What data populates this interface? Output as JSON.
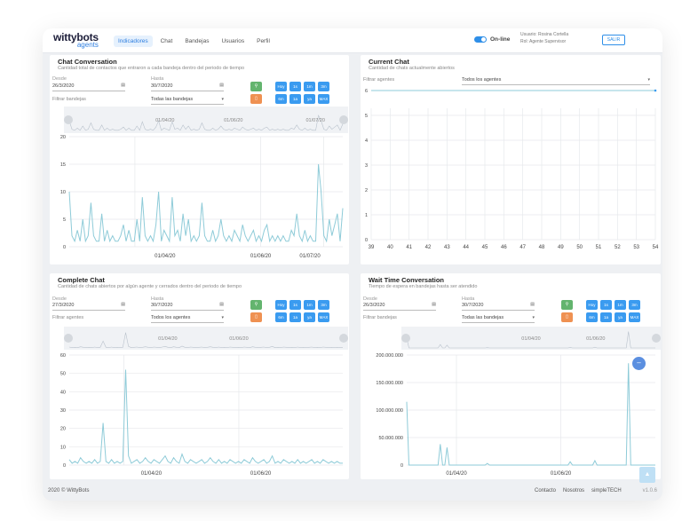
{
  "brand": {
    "logo_top": "wittybots",
    "logo_bottom": "agents"
  },
  "nav": {
    "items": [
      "Indicadores",
      "Chat",
      "Bandejas",
      "Usuarios",
      "Perfil"
    ],
    "active": "Indicadores"
  },
  "status": {
    "online_label": "On-line"
  },
  "user": {
    "user_key": "Usuario:",
    "user_name": "Rosina Cortella",
    "role_key": "Rol:",
    "role_name": "Agente Supervisor",
    "logout_label": "SALIR"
  },
  "colors": {
    "accent": "#2f8fe8",
    "line": "#8ecbd8",
    "green": "#63b46e",
    "orange": "#ef9152"
  },
  "range_buttons": {
    "row1": [
      "Hoy",
      "1s",
      "1m",
      "3m"
    ],
    "row2": [
      "6m",
      "1a",
      "ya",
      "MAX"
    ]
  },
  "icons": {
    "search": "search-icon",
    "chart": "chart-icon",
    "calendar": "calendar-icon"
  },
  "panels": {
    "chat_conversation": {
      "title": "Chat Conversation",
      "subtitle": "Cantidad total de contactos que entraron a cada bandeja dentro del periodo de tiempo",
      "from_label": "Desde",
      "from_value": "26/3/2020",
      "to_label": "Hasta",
      "to_value": "30/7/2020",
      "filter_label": "Filtrar bandejas",
      "filter_value": "Todas las bandejas",
      "nav_dates": [
        "01/04/20",
        "01/06/20",
        "01/07/20"
      ],
      "x_dates": [
        "01/04/20",
        "01/06/20",
        "01/07/20"
      ]
    },
    "current_chat": {
      "title": "Current Chat",
      "subtitle": "Cantidad de chats actualmente abiertos",
      "filter_label": "Filtrar agentes",
      "filter_value": "Todos los agentes"
    },
    "complete_chat": {
      "title": "Complete Chat",
      "subtitle": "Cantidad de chats abiertos por algún agente y cerrados dentro del periodo de tiempo",
      "from_label": "Desde",
      "from_value": "27/3/2020",
      "to_label": "Hasta",
      "to_value": "30/7/2020",
      "filter_label": "Filtrar agentes",
      "filter_value": "Todos los agentes",
      "nav_dates": [
        "01/04/20",
        "01/06/20"
      ],
      "x_dates": [
        "01/04/20",
        "01/06/20"
      ]
    },
    "wait_time": {
      "title": "Wait Time Conversation",
      "subtitle": "Tiempo de espera en bandejas hasta ser atendido",
      "from_label": "Desde",
      "from_value": "26/3/2020",
      "to_label": "Hasta",
      "to_value": "30/7/2020",
      "filter_label": "Filtrar bandejas",
      "filter_value": "Todas las bandejas",
      "nav_dates": [
        "01/04/20",
        "01/06/20"
      ],
      "x_dates": [
        "01/04/20",
        "01/06/20"
      ]
    }
  },
  "chart_data": [
    {
      "type": "line",
      "title": "Chat Conversation",
      "ylim": [
        0,
        20
      ],
      "yticks": [
        0,
        5,
        10,
        15,
        20
      ],
      "x_tick_labels": [
        "01/04/20",
        "01/06/20",
        "01/07/20"
      ],
      "series": [
        {
          "values": [
            10,
            2,
            1,
            3,
            1,
            5,
            1,
            2,
            8,
            2,
            1,
            1,
            6,
            1,
            3,
            1,
            2,
            1,
            1,
            2,
            4,
            1,
            3,
            1,
            1,
            5,
            1,
            9,
            2,
            1,
            2,
            1,
            4,
            10,
            1,
            3,
            2,
            1,
            9,
            2,
            3,
            1,
            6,
            2,
            5,
            1,
            2,
            1,
            2,
            8,
            2,
            1,
            1,
            3,
            1,
            2,
            5,
            2,
            1,
            2,
            1,
            3,
            2,
            1,
            4,
            2,
            1,
            2,
            3,
            1,
            2,
            1,
            3,
            4,
            1,
            2,
            1,
            2,
            1,
            2,
            1,
            1,
            3,
            2,
            6,
            2,
            1,
            3,
            1,
            2,
            1,
            1,
            15,
            10,
            2,
            1,
            5,
            2,
            4,
            6,
            1,
            7
          ]
        }
      ]
    },
    {
      "type": "line",
      "title": "Current Chat",
      "ylim": [
        0,
        6
      ],
      "yticks": [
        0,
        1,
        2,
        3,
        4,
        5,
        6
      ],
      "x_tick_labels": [
        "39",
        "40",
        "41",
        "42",
        "43",
        "44",
        "45",
        "46",
        "47",
        "48",
        "49",
        "50",
        "51",
        "52",
        "53",
        "54"
      ],
      "series": [
        {
          "values": [
            6,
            6,
            6,
            6,
            6,
            6,
            6,
            6,
            6,
            6,
            6,
            6,
            6,
            6,
            6,
            6
          ]
        }
      ]
    },
    {
      "type": "line",
      "title": "Complete Chat",
      "ylim": [
        0,
        60
      ],
      "yticks": [
        0,
        10,
        20,
        30,
        40,
        50,
        60
      ],
      "x_tick_labels": [
        "01/04/20",
        "01/06/20"
      ],
      "series": [
        {
          "values": [
            3,
            1,
            2,
            1,
            4,
            2,
            1,
            2,
            1,
            3,
            1,
            2,
            23,
            2,
            1,
            3,
            1,
            2,
            1,
            2,
            52,
            5,
            1,
            2,
            3,
            1,
            2,
            4,
            2,
            1,
            3,
            2,
            1,
            3,
            5,
            2,
            1,
            4,
            2,
            1,
            6,
            2,
            1,
            3,
            2,
            1,
            2,
            3,
            1,
            2,
            4,
            2,
            1,
            3,
            1,
            2,
            1,
            3,
            2,
            1,
            2,
            1,
            3,
            2,
            1,
            4,
            2,
            1,
            2,
            3,
            1,
            2,
            5,
            1,
            2,
            1,
            3,
            2,
            1,
            2,
            1,
            3,
            1,
            2,
            1,
            2,
            3,
            1,
            2,
            1,
            3,
            2,
            1,
            2,
            1,
            2,
            1,
            1
          ]
        }
      ]
    },
    {
      "type": "line",
      "title": "Wait Time Conversation",
      "ylim": [
        0,
        200000000
      ],
      "yticks": [
        0,
        50000000,
        100000000,
        150000000,
        200000000
      ],
      "ytick_labels": [
        "0",
        "50.000.000",
        "100.000.000",
        "150.000.000",
        "200.000.000"
      ],
      "x_tick_labels": [
        "01/04/20",
        "01/06/20"
      ],
      "series": [
        {
          "values": [
            115000000,
            0,
            0,
            0,
            0,
            0,
            0,
            0,
            0,
            0,
            0,
            0,
            0,
            0,
            0,
            38000000,
            0,
            0,
            32000000,
            0,
            0,
            0,
            0,
            0,
            0,
            0,
            0,
            0,
            0,
            0,
            0,
            0,
            0,
            0,
            0,
            0,
            3000000,
            0,
            0,
            0,
            0,
            0,
            0,
            0,
            0,
            0,
            0,
            0,
            0,
            0,
            0,
            0,
            0,
            0,
            0,
            0,
            0,
            0,
            0,
            0,
            0,
            0,
            0,
            0,
            0,
            0,
            0,
            0,
            0,
            0,
            0,
            0,
            0,
            6000000,
            0,
            0,
            0,
            0,
            0,
            0,
            0,
            0,
            0,
            0,
            8000000,
            0,
            0,
            0,
            0,
            0,
            0,
            0,
            0,
            0,
            0,
            0,
            0,
            0,
            0,
            185000000,
            0,
            0,
            0,
            0,
            0,
            0,
            0,
            0,
            0,
            0,
            0,
            0
          ]
        }
      ]
    }
  ],
  "footer": {
    "copyright": "2020 © WittyBots",
    "links": [
      "Contacto",
      "Nosotros",
      "simpleTECH"
    ],
    "version": "v1.0.6"
  }
}
